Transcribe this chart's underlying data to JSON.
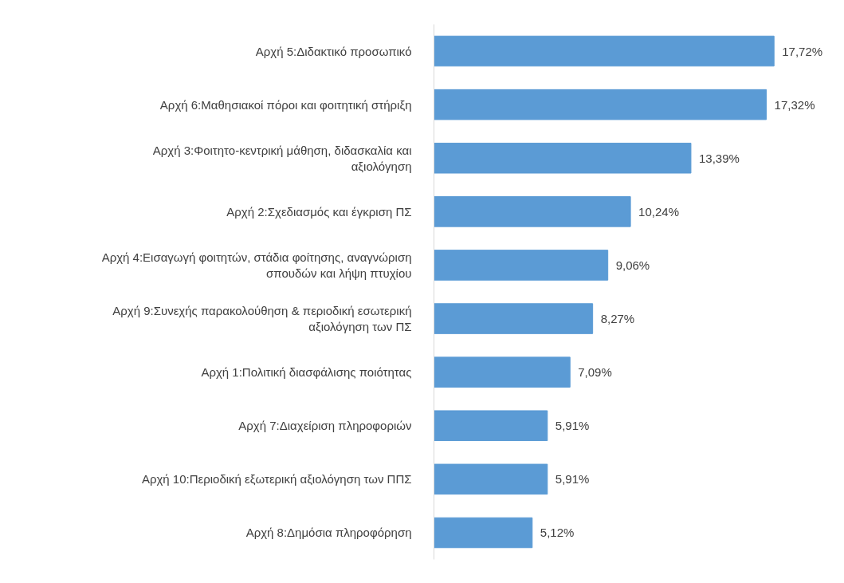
{
  "chart_data": {
    "type": "bar",
    "orientation": "horizontal",
    "categories": [
      "Αρχή 5:Διδακτικό προσωπικό",
      "Αρχή 6:Μαθησιακοί πόροι και φοιτητική στήριξη",
      "Αρχή 3:Φοιτητο-κεντρική μάθηση, διδασκαλία και αξιολόγηση",
      "Αρχή 2:Σχεδιασμός και έγκριση ΠΣ",
      "Αρχή 4:Εισαγωγή φοιτητών, στάδια φοίτησης, αναγνώριση σπουδών και λήψη πτυχίου",
      "Αρχή 9:Συνεχής παρακολούθηση & περιοδική εσωτερική αξιολόγηση των ΠΣ",
      "Αρχή 1:Πολιτική διασφάλισης ποιότητας",
      "Αρχή 7:Διαχείριση πληροφοριών",
      "Αρχή 10:Περιοδική εξωτερική αξιολόγηση των ΠΠΣ",
      "Αρχή 8:Δημόσια πληροφόρηση"
    ],
    "values": [
      17.72,
      17.32,
      13.39,
      10.24,
      9.06,
      8.27,
      7.09,
      5.91,
      5.91,
      5.12
    ],
    "value_labels": [
      "17,72%",
      "17,32%",
      "13,39%",
      "10,24%",
      "9,06%",
      "8,27%",
      "7,09%",
      "5,91%",
      "5,91%",
      "5,12%"
    ],
    "color": "#5b9bd5",
    "tick_labels": "y",
    "grid": false
  }
}
